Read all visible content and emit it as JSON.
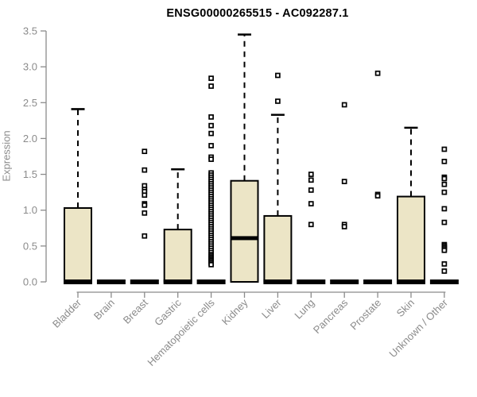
{
  "chart_data": {
    "type": "boxplot",
    "title": "ENSG00000265515 - AC092287.1",
    "ylabel": "Expression",
    "xlabel": "",
    "ylim": [
      0,
      3.5
    ],
    "yticks": [
      0,
      0.5,
      1,
      1.5,
      2,
      2.5,
      3,
      3.5
    ],
    "ytick_labels": [
      "0.0",
      "0.5",
      "1.0",
      "1.5",
      "2.0",
      "2.5",
      "3.0",
      "3.5"
    ],
    "grid": false,
    "legend": "none",
    "colors": {
      "box_fill": "#ece5c6",
      "box_border": "#000000",
      "whisker": "#000000",
      "axis": "#8b8b8b",
      "tick_text": "#8b8b8b",
      "title_text": "#000000",
      "outlier_fill": "#ffffff"
    },
    "categories": [
      "Bladder",
      "Brain",
      "Breast",
      "Gastric",
      "Hematopoietic cells",
      "Kidney",
      "Liver",
      "Lung",
      "Pancreas",
      "Prostate",
      "Skin",
      "Unknown / Other"
    ],
    "series": [
      {
        "name": "Bladder",
        "whisker_low": 0,
        "q1": 0,
        "median": 0,
        "q3": 1.03,
        "whisker_high": 2.41,
        "outliers": []
      },
      {
        "name": "Brain",
        "whisker_low": 0,
        "q1": 0,
        "median": 0,
        "q3": 0,
        "whisker_high": 0,
        "outliers": []
      },
      {
        "name": "Breast",
        "whisker_low": 0,
        "q1": 0,
        "median": 0,
        "q3": 0,
        "whisker_high": 0,
        "outliers": [
          1.82,
          1.56,
          1.34,
          1.29,
          1.26,
          1.21,
          1.09,
          1.07,
          0.96,
          0.64
        ]
      },
      {
        "name": "Gastric",
        "whisker_low": 0,
        "q1": 0,
        "median": 0,
        "q3": 0.73,
        "whisker_high": 1.57,
        "outliers": []
      },
      {
        "name": "Hematopoietic cells",
        "whisker_low": 0,
        "q1": 0,
        "median": 0,
        "q3": 0,
        "whisker_high": 0,
        "outliers": [
          2.84,
          2.73,
          2.3,
          2.18,
          2.07,
          1.9,
          1.74,
          1.71,
          1.52,
          1.49,
          1.46,
          1.43,
          1.4,
          1.37,
          1.34,
          1.31,
          1.28,
          1.25,
          1.22,
          1.19,
          1.16,
          1.13,
          1.1,
          1.07,
          1.04,
          1.01,
          0.98,
          0.95,
          0.92,
          0.89,
          0.86,
          0.83,
          0.8,
          0.77,
          0.74,
          0.71,
          0.68,
          0.65,
          0.62,
          0.59,
          0.56,
          0.53,
          0.5,
          0.47,
          0.44,
          0.41,
          0.38,
          0.36,
          0.34,
          0.32,
          0.3,
          0.28,
          0.26,
          0.24
        ]
      },
      {
        "name": "Kidney",
        "whisker_low": 0,
        "q1": 0,
        "median": 0.61,
        "q3": 1.41,
        "whisker_high": 3.45,
        "outliers": []
      },
      {
        "name": "Liver",
        "whisker_low": 0,
        "q1": 0,
        "median": 0,
        "q3": 0.92,
        "whisker_high": 2.33,
        "outliers": [
          2.88,
          2.52
        ]
      },
      {
        "name": "Lung",
        "whisker_low": 0,
        "q1": 0,
        "median": 0,
        "q3": 0,
        "whisker_high": 0,
        "outliers": [
          1.5,
          1.42,
          1.28,
          1.09,
          0.8
        ]
      },
      {
        "name": "Pancreas",
        "whisker_low": 0,
        "q1": 0,
        "median": 0,
        "q3": 0,
        "whisker_high": 0,
        "outliers": [
          2.47,
          1.4,
          0.8,
          0.77
        ]
      },
      {
        "name": "Prostate",
        "whisker_low": 0,
        "q1": 0,
        "median": 0,
        "q3": 0,
        "whisker_high": 0,
        "outliers": [
          2.91,
          1.22,
          1.2
        ]
      },
      {
        "name": "Skin",
        "whisker_low": 0,
        "q1": 0,
        "median": 0,
        "q3": 1.19,
        "whisker_high": 2.15,
        "outliers": []
      },
      {
        "name": "Unknown / Other",
        "whisker_low": 0,
        "q1": 0,
        "median": 0,
        "q3": 0,
        "whisker_high": 0,
        "outliers": [
          1.85,
          1.68,
          1.46,
          1.44,
          1.36,
          1.25,
          1.02,
          0.83,
          0.52,
          0.5,
          0.48,
          0.46,
          0.44,
          0.25,
          0.15
        ]
      }
    ]
  }
}
